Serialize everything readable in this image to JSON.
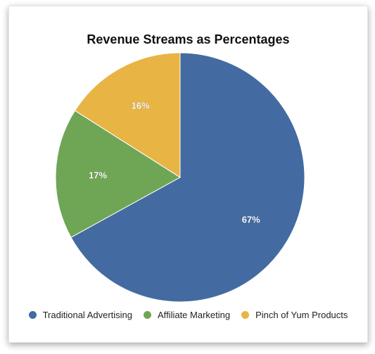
{
  "chart_data": {
    "type": "pie",
    "title": "Revenue Streams as Percentages",
    "legend_position": "bottom",
    "slices": [
      {
        "name": "Traditional Advertising",
        "value": 67,
        "label": "67%",
        "color": "#436ba2"
      },
      {
        "name": "Affiliate Marketing",
        "value": 17,
        "label": "17%",
        "color": "#6fa655"
      },
      {
        "name": "Pinch of Yum Products",
        "value": 16,
        "label": "16%",
        "color": "#e8b443"
      }
    ]
  }
}
